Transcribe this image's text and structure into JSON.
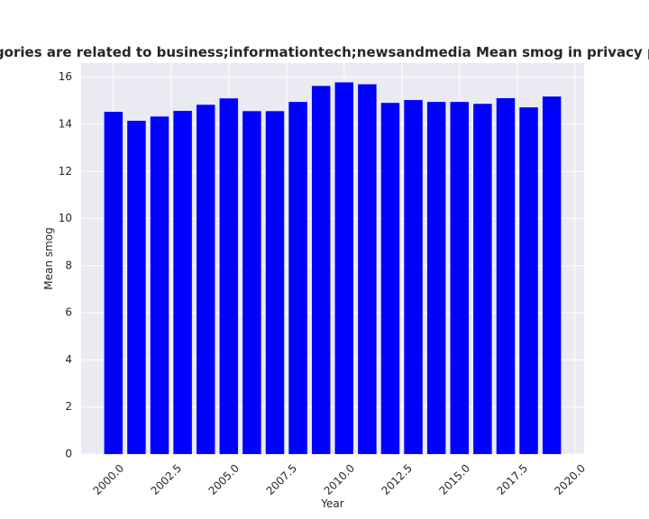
{
  "chart_data": {
    "type": "bar",
    "title": "Categories are related to business;informationtech;newsandmedia Mean smog in privacy policies",
    "xlabel": "Year",
    "ylabel": "Mean smog",
    "x": [
      2000,
      2001,
      2002,
      2003,
      2004,
      2005,
      2006,
      2007,
      2008,
      2009,
      2010,
      2011,
      2012,
      2013,
      2014,
      2015,
      2016,
      2017,
      2018,
      2019
    ],
    "values": [
      14.53,
      14.15,
      14.33,
      14.57,
      14.83,
      15.1,
      14.56,
      14.56,
      14.95,
      15.63,
      15.78,
      15.7,
      14.91,
      15.03,
      14.95,
      14.95,
      14.87,
      15.11,
      14.72,
      15.18
    ],
    "xlim": [
      1998.6,
      2020.4
    ],
    "ylim": [
      0,
      16.6
    ],
    "xticks": [
      "2000.0",
      "2002.5",
      "2005.0",
      "2007.5",
      "2010.0",
      "2012.5",
      "2015.0",
      "2017.5",
      "2020.0"
    ],
    "xtick_values": [
      2000,
      2002.5,
      2005,
      2007.5,
      2010,
      2012.5,
      2015,
      2017.5,
      2020
    ],
    "yticks": [
      "0",
      "2",
      "4",
      "6",
      "8",
      "10",
      "12",
      "14",
      "16"
    ],
    "ytick_values": [
      0,
      2,
      4,
      6,
      8,
      10,
      12,
      14,
      16
    ],
    "bar_color": "#0000ff",
    "plot_background": "#eaeaf2",
    "grid_color": "#ffffff",
    "grid": true
  }
}
